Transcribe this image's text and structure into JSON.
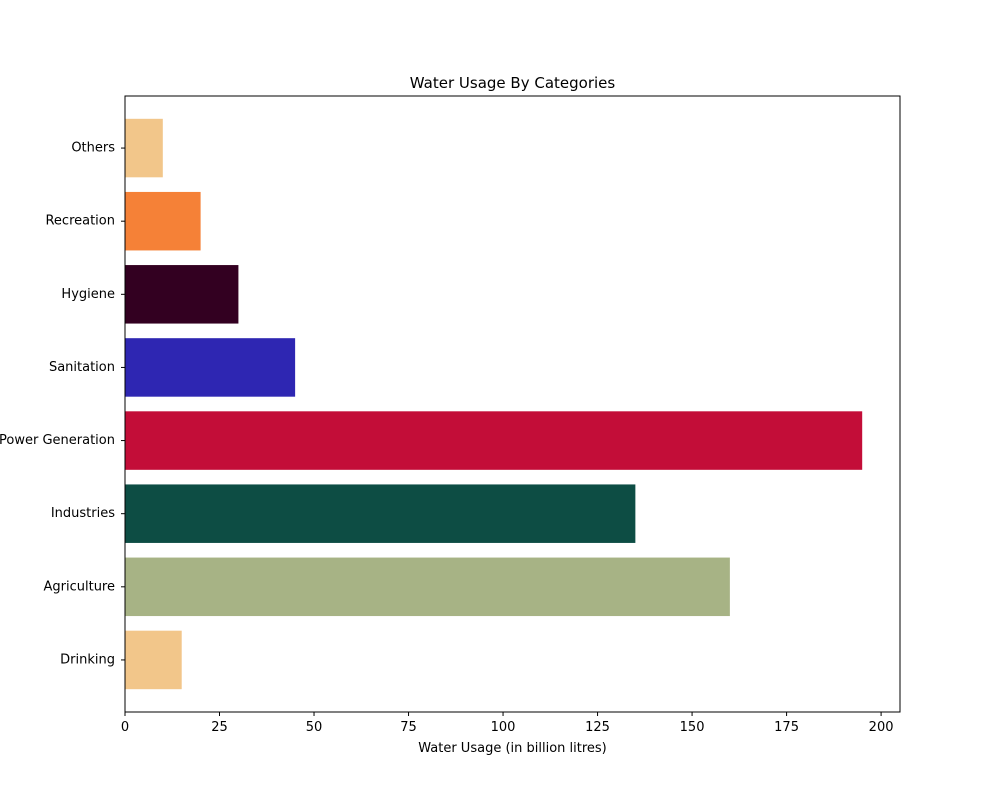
{
  "chart_data": {
    "type": "bar",
    "orientation": "horizontal",
    "title": "Water Usage By Categories",
    "xlabel": "Water Usage (in billion litres)",
    "ylabel": "",
    "xlim": [
      0,
      205
    ],
    "xticks": [
      0,
      25,
      50,
      75,
      100,
      125,
      150,
      175,
      200
    ],
    "categories": [
      "Drinking",
      "Agriculture",
      "Industries",
      "Power Generation",
      "Sanitation",
      "Hygiene",
      "Recreation",
      "Others"
    ],
    "values": [
      15,
      160,
      135,
      195,
      45,
      30,
      20,
      10
    ],
    "colors": [
      "#f2c68a",
      "#a7b385",
      "#0d4d44",
      "#c30d38",
      "#2e26b2",
      "#330021",
      "#f58137",
      "#f2c68a"
    ],
    "grid": false,
    "legend": "none"
  }
}
